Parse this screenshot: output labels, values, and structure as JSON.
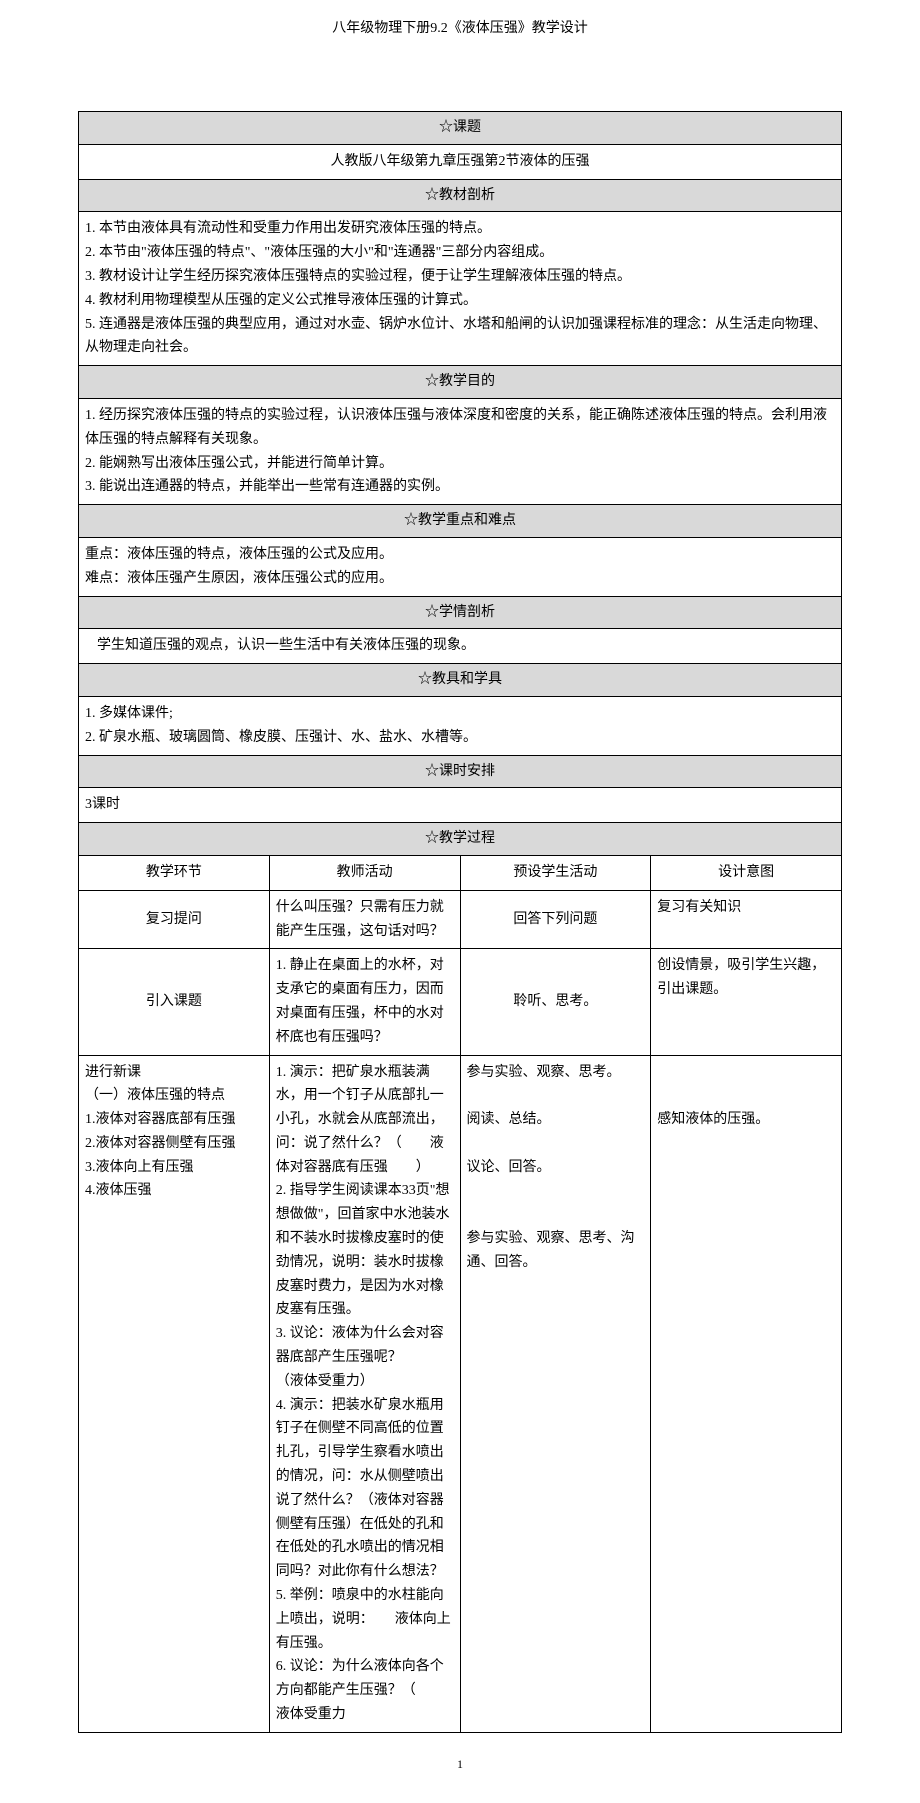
{
  "doc_title": "八年级物理下册9.2《液体压强》教学设计",
  "sections": {
    "s1_header": "☆课题",
    "s1_content": "人教版八年级第九章压强第2节液体的压强",
    "s2_header": "☆教材剖析",
    "s2_lines": [
      "1. 本节由液体具有流动性和受重力作用出发研究液体压强的特点。",
      "2. 本节由\"液体压强的特点\"、\"液体压强的大小\"和\"连通器\"三部分内容组成。",
      "3. 教材设计让学生经历探究液体压强特点的实验过程，便于让学生理解液体压强的特点。",
      "4. 教材利用物理模型从压强的定义公式推导液体压强的计算式。",
      "5. 连通器是液体压强的典型应用，通过对水壶、锅炉水位计、水塔和船闸的认识加强课程标准的理念：从生活走向物理、从物理走向社会。"
    ],
    "s3_header": "☆教学目的",
    "s3_lines": [
      "1. 经历探究液体压强的特点的实验过程，认识液体压强与液体深度和密度的关系，能正确陈述液体压强的特点。会利用液体压强的特点解释有关现象。",
      "2. 能娴熟写出液体压强公式，并能进行简单计算。",
      "3. 能说出连通器的特点，并能举出一些常有连通器的实例。"
    ],
    "s4_header": "☆教学重点和难点",
    "s4_lines": [
      "重点：液体压强的特点，液体压强的公式及应用。",
      "难点：液体压强产生原因，液体压强公式的应用。"
    ],
    "s5_header": "☆学情剖析",
    "s5_content": "学生知道压强的观点，认识一些生活中有关液体压强的现象。",
    "s6_header": "☆教具和学具",
    "s6_lines": [
      "1. 多媒体课件;",
      "2. 矿泉水瓶、玻璃圆筒、橡皮膜、压强计、水、盐水、水槽等。"
    ],
    "s7_header": "☆课时安排",
    "s7_content": "3课时",
    "s8_header": "☆教学过程"
  },
  "process_headers": {
    "c1": "教学环节",
    "c2": "教师活动",
    "c3": "预设学生活动",
    "c4": "设计意图"
  },
  "process_rows": [
    {
      "c1": "复习提问",
      "c2": "什么叫压强？只需有压力就能产生压强，这句话对吗？",
      "c3": "回答下列问题",
      "c4": "复习有关知识"
    },
    {
      "c1": "引入课题",
      "c2": "1. 静止在桌面上的水杯，对支承它的桌面有压力，因而对桌面有压强，杯中的水对杯底也有压强吗？",
      "c3": "聆听、思考。",
      "c4": "创设情景，吸引学生兴趣，引出课题。"
    },
    {
      "c1": "进行新课\n（一）液体压强的特点\n1.液体对容器底部有压强\n2.液体对容器侧壁有压强\n3.液体向上有压强\n4.液体压强",
      "c2": "1. 演示：把矿泉水瓶装满水，用一个钉子从底部扎一小孔，水就会从底部流出，问：说了然什么？（　　液体对容器底有压强　　）\n2. 指导学生阅读课本33页\"想想做做\"，回首家中水池装水和不装水时拔橡皮塞时的使劲情况，说明：装水时拔橡皮塞时费力，是因为水对橡皮塞有压强。\n3. 议论：液体为什么会对容器底部产生压强呢？　　　（液体受重力）\n4. 演示：把装水矿泉水瓶用钉子在侧壁不同高低的位置扎孔，引导学生察看水喷出的情况，问：水从侧壁喷出说了然什么？（液体对容器侧壁有压强）在低处的孔和在低处的孔水喷出的情况相同吗？对此你有什么想法？\n5. 举例：喷泉中的水柱能向上喷出，说明：　　液体向上有压强。\n6. 议论：为什么液体向各个方向都能产生压强？（　　液体受重力",
      "c3": "参与实验、观察、思考。\n\n阅读、总结。\n\n议论、回答。\n\n\n参与实验、观察、思考、沟通、回答。",
      "c4": "\n\n感知液体的压强。"
    }
  ],
  "page_number": "1"
}
